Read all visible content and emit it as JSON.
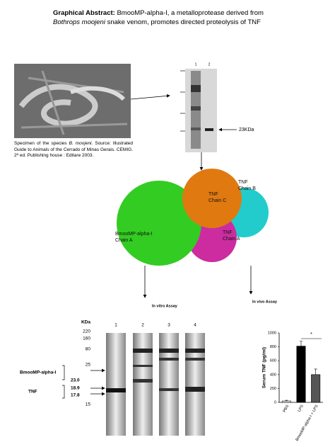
{
  "header": {
    "lead": "Graphical Abstract:",
    "text1": "BmooMP-alpha-I, a metalloprotease derived from",
    "italic": "Bothrops moojeni",
    "text2": "snake venom, promotes directed proteolysis of TNF"
  },
  "caption": {
    "text1": "Specimen of the species",
    "italic": "B. moojeni.",
    "text2": "Source: Illustrated Guide to Animals of the Cerrado of Minas Gerais. CEMIG. 2ª ed. Publishing house : Editare 2003."
  },
  "top_gel": {
    "lanes": [
      "1",
      "2"
    ],
    "band_label": "23KDa"
  },
  "structure": {
    "labels": [
      {
        "lines": [
          "TNF",
          "Chain B"
        ]
      },
      {
        "lines": [
          "TNF",
          "Chain C"
        ]
      },
      {
        "lines": [
          "BmooMP-alpha-I",
          "Chain A"
        ]
      },
      {
        "lines": [
          "TNF",
          "Chain A"
        ]
      }
    ]
  },
  "assays": {
    "in_vitro": "In vitro Assay",
    "in_vivo": "In vivo Assay"
  },
  "bottom_gel": {
    "unit": "KDa",
    "markers": [
      "220",
      "160",
      "80",
      "25",
      "15"
    ],
    "lanes": [
      "1",
      "2",
      "3",
      "4"
    ],
    "enzyme": "BmooMP-alpha-I",
    "enzyme_mw": "23.0",
    "tnf": "TNF",
    "tnf_mw": [
      "18.9",
      "17.8"
    ]
  },
  "chart_data": {
    "type": "bar",
    "ylabel": "Serum TNF (pg/ml)",
    "categories": [
      "PBS",
      "LPS",
      "BmooMP-alpha-I + LPS"
    ],
    "values": [
      20,
      810,
      400
    ],
    "errors": [
      10,
      70,
      80
    ],
    "colors": [
      "#ffffff",
      "#000000",
      "#555555"
    ],
    "ylim": [
      0,
      1000
    ],
    "yticks": [
      0,
      200,
      400,
      600,
      800,
      1000
    ],
    "significance": "*"
  }
}
